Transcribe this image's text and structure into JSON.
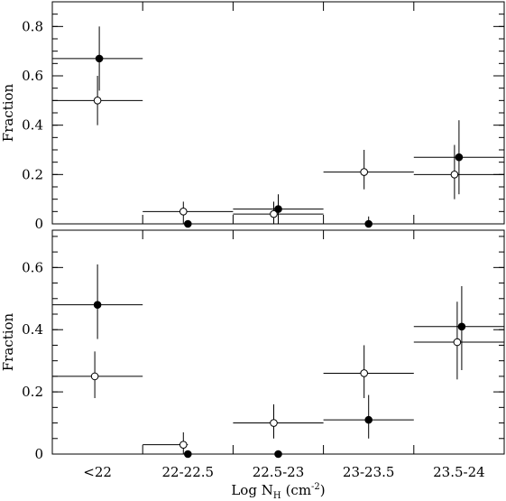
{
  "chart_data": [
    {
      "type": "scatter",
      "panel": "top",
      "ylabel": "Fraction",
      "ylim": [
        0,
        0.9
      ],
      "yticks": [
        0,
        0.2,
        0.4,
        0.6,
        0.8
      ],
      "ytick_labels": [
        "0",
        "0.2",
        "0.4",
        "0.6",
        "0.8"
      ],
      "categories": [
        "<22",
        "22-22.5",
        "22.5-23",
        "23-23.5",
        "23.5-24"
      ],
      "series": [
        {
          "marker": "open",
          "points": [
            {
              "y": 0.5,
              "yerr": [
                0.1,
                0.1
              ],
              "xoff": 0.0,
              "bin": [
                -0.5,
                0.5
              ]
            },
            {
              "y": 0.05,
              "yerr": [
                0.05,
                0.04
              ],
              "xoff": -0.05,
              "bin": [
                0.5,
                1.5
              ]
            },
            {
              "y": 0.04,
              "yerr": [
                0.04,
                0.05
              ],
              "xoff": -0.05,
              "bin": [
                1.5,
                2.5
              ]
            },
            {
              "y": 0.21,
              "yerr": [
                0.07,
                0.09
              ],
              "xoff": -0.05,
              "bin": [
                2.5,
                3.5
              ]
            },
            {
              "y": 0.2,
              "yerr": [
                0.1,
                0.12
              ],
              "xoff": -0.05,
              "bin": [
                3.5,
                4.5
              ]
            }
          ]
        },
        {
          "marker": "filled",
          "points": [
            {
              "y": 0.67,
              "yerr": [
                0.13,
                0.13
              ],
              "xoff": 0.02,
              "bin": [
                -0.5,
                0.5
              ]
            },
            {
              "y": 0.0,
              "yerr": [
                0,
                0
              ],
              "xoff": 0.0,
              "bin": [
                0.5,
                1.5
              ]
            },
            {
              "y": 0.06,
              "yerr": [
                0.06,
                0.06
              ],
              "xoff": 0.0,
              "bin": [
                1.5,
                2.5
              ]
            },
            {
              "y": 0.0,
              "yerr": [
                0,
                0.03
              ],
              "xoff": 0.0,
              "bin": [
                2.5,
                3.5
              ]
            },
            {
              "y": 0.27,
              "yerr": [
                0.15,
                0.15
              ],
              "xoff": 0.0,
              "bin": [
                3.5,
                4.5
              ]
            }
          ]
        }
      ]
    },
    {
      "type": "scatter",
      "panel": "bottom",
      "ylabel": "Fraction",
      "xlabel_main": "Log N",
      "xlabel_sub": "H",
      "xlabel_unit": "(cm",
      "xlabel_exp": "-2",
      "xlabel_close": ")",
      "ylim": [
        0,
        0.72
      ],
      "yticks": [
        0,
        0.2,
        0.4,
        0.6
      ],
      "ytick_labels": [
        "0",
        "0.2",
        "0.4",
        "0.6"
      ],
      "categories": [
        "<22",
        "22-22.5",
        "22.5-23",
        "23-23.5",
        "23.5-24"
      ],
      "series": [
        {
          "marker": "open",
          "points": [
            {
              "y": 0.25,
              "yerr": [
                0.07,
                0.08
              ],
              "xoff": -0.03,
              "bin": [
                -0.5,
                0.5
              ]
            },
            {
              "y": 0.03,
              "yerr": [
                0.03,
                0.04
              ],
              "xoff": -0.05,
              "bin": [
                0.5,
                1.0
              ]
            },
            {
              "y": 0.1,
              "yerr": [
                0.05,
                0.06
              ],
              "xoff": -0.05,
              "bin": [
                1.5,
                2.5
              ]
            },
            {
              "y": 0.26,
              "yerr": [
                0.08,
                0.09
              ],
              "xoff": -0.05,
              "bin": [
                2.5,
                3.5
              ]
            },
            {
              "y": 0.36,
              "yerr": [
                0.12,
                0.13
              ],
              "xoff": -0.02,
              "bin": [
                3.5,
                4.5
              ]
            }
          ]
        },
        {
          "marker": "filled",
          "points": [
            {
              "y": 0.48,
              "yerr": [
                0.11,
                0.13
              ],
              "xoff": 0.0,
              "bin": [
                -0.5,
                0.5
              ]
            },
            {
              "y": 0.0,
              "yerr": [
                0,
                0
              ],
              "xoff": 0.0,
              "bin": [
                0.5,
                1.5
              ]
            },
            {
              "y": 0.0,
              "yerr": [
                0,
                0
              ],
              "xoff": 0.0,
              "bin": [
                1.5,
                2.5
              ]
            },
            {
              "y": 0.11,
              "yerr": [
                0.06,
                0.08
              ],
              "xoff": 0.0,
              "bin": [
                2.5,
                3.5
              ]
            },
            {
              "y": 0.41,
              "yerr": [
                0.14,
                0.13
              ],
              "xoff": 0.03,
              "bin": [
                3.5,
                4.5
              ]
            }
          ]
        }
      ]
    }
  ]
}
